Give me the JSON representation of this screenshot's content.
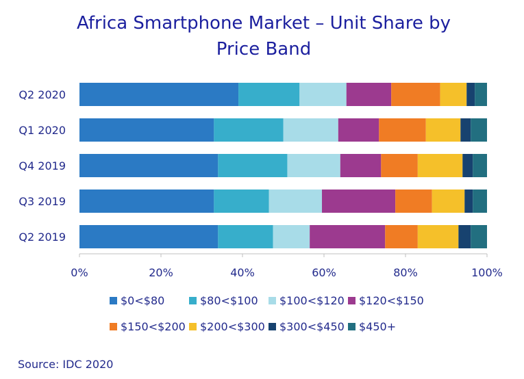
{
  "chart_data": {
    "type": "bar",
    "orientation": "horizontal",
    "stacked": true,
    "title_lines": [
      "Africa Smartphone Market – Unit Share by",
      "Price Band"
    ],
    "categories": [
      "Q2 2020",
      "Q1 2020",
      "Q4 2019",
      "Q3 2019",
      "Q2 2019"
    ],
    "xlim": [
      0,
      100
    ],
    "x_ticks": [
      "0%",
      "20%",
      "40%",
      "60%",
      "80%",
      "100%"
    ],
    "x_tick_values": [
      0,
      20,
      40,
      60,
      80,
      100
    ],
    "grid": false,
    "legend_position": "bottom",
    "series": [
      {
        "name": "$0<$80",
        "color": "#2b7ac4",
        "values": [
          39.0,
          33.0,
          34.0,
          33.0,
          34.0
        ]
      },
      {
        "name": "$80<$100",
        "color": "#37aecb",
        "values": [
          15.0,
          17.0,
          17.0,
          13.5,
          13.5
        ]
      },
      {
        "name": "$100<$120",
        "color": "#a8dce8",
        "values": [
          11.5,
          13.5,
          13.0,
          13.0,
          9.0
        ]
      },
      {
        "name": "$120<$150",
        "color": "#9c3a8f",
        "values": [
          11.0,
          10.0,
          10.0,
          18.0,
          18.5
        ]
      },
      {
        "name": "$150<$200",
        "color": "#f07c24",
        "values": [
          12.0,
          11.5,
          9.0,
          9.0,
          8.0
        ]
      },
      {
        "name": "$200<$300",
        "color": "#f5c02a",
        "values": [
          6.5,
          8.5,
          11.0,
          8.0,
          10.0
        ]
      },
      {
        "name": "$300<$450",
        "color": "#17426f",
        "values": [
          2.0,
          2.5,
          2.5,
          2.0,
          3.0
        ]
      },
      {
        "name": "$450+",
        "color": "#226f80",
        "values": [
          3.0,
          4.0,
          3.5,
          3.5,
          4.0
        ]
      }
    ]
  },
  "source": "Source: IDC 2020"
}
